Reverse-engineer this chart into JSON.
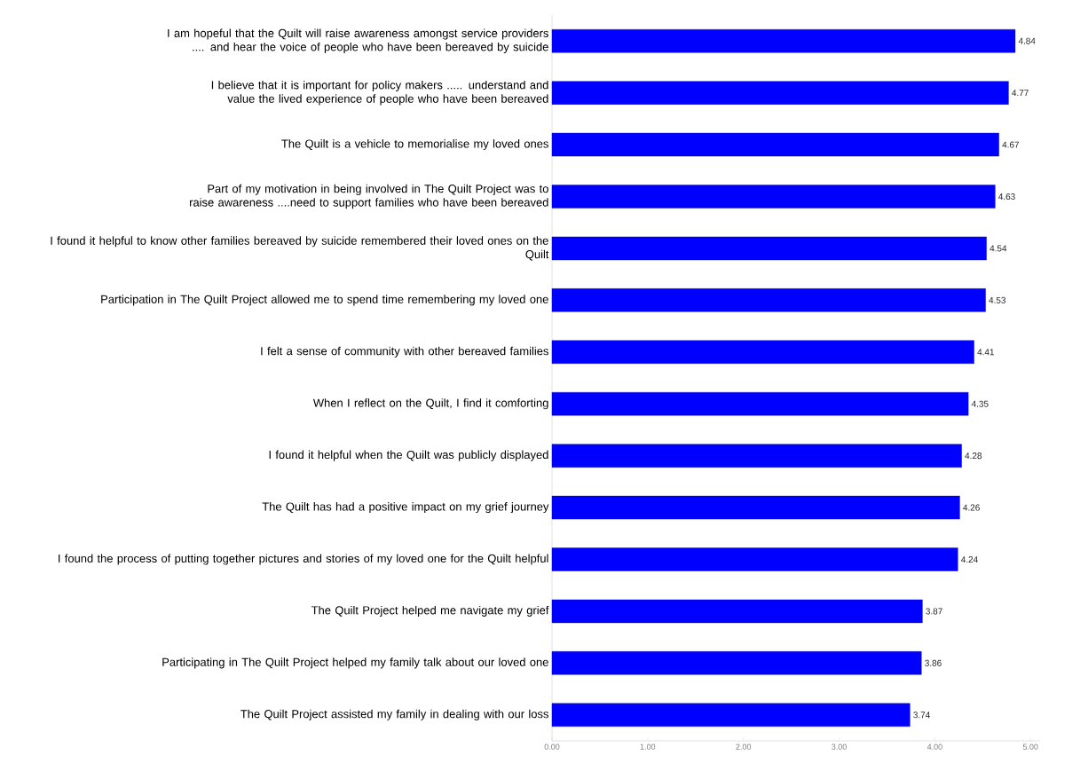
{
  "chart_data": {
    "type": "bar",
    "orientation": "horizontal",
    "color": "#0000ff",
    "data_labels": true,
    "categories": [
      "I am hopeful that the Quilt will raise awareness amongst service providers .... and hear the voice of people who have been bereaved by suicide",
      "I believe that it is important for policy makers ..... understand and value the lived experience of people who have been bereaved",
      "The Quilt is a vehicle to memorialise my loved ones",
      "Part of my motivation in being involved in The Quilt Project was to raise awareness ....need to support families who have been bereaved",
      "I found it helpful to know other families bereaved by suicide remembered their loved ones on the Quilt",
      "Participation in The Quilt Project allowed me to spend time remembering my loved one",
      "I felt a sense of community with other bereaved families",
      "When I reflect on the Quilt, I find it comforting",
      "I found it helpful when the Quilt was publicly displayed",
      "The Quilt has had a positive impact on my grief journey",
      "I found the process of putting together pictures and stories of my loved one for the Quilt helpful",
      "The Quilt Project helped me navigate my grief",
      "Participating in The Quilt Project helped my family talk about our loved one",
      "The Quilt Project assisted my family in dealing with our loss"
    ],
    "values": [
      4.84,
      4.77,
      4.67,
      4.63,
      4.54,
      4.53,
      4.41,
      4.35,
      4.28,
      4.26,
      4.24,
      3.87,
      3.86,
      3.74
    ],
    "xlim": [
      0,
      5.1
    ],
    "xticks": [
      {
        "value": 0,
        "label": "0.00"
      },
      {
        "value": 1,
        "label": "1.00"
      },
      {
        "value": 2,
        "label": "2.00"
      },
      {
        "value": 3,
        "label": "3.00"
      },
      {
        "value": 4,
        "label": "4.00"
      },
      {
        "value": 5,
        "label": "5.00"
      }
    ]
  }
}
